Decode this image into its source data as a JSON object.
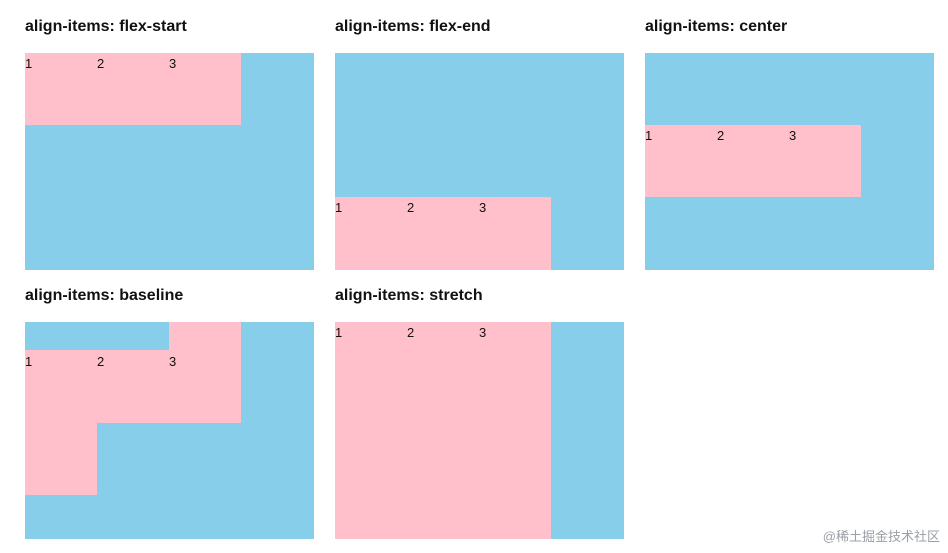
{
  "colors": {
    "container": "#87ceeb",
    "item": "#ffc0cb"
  },
  "panels": [
    {
      "title": "align-items: flex-start",
      "items": [
        "1",
        "2",
        "3"
      ]
    },
    {
      "title": "align-items: flex-end",
      "items": [
        "1",
        "2",
        "3"
      ]
    },
    {
      "title": "align-items: center",
      "items": [
        "1",
        "2",
        "3"
      ]
    },
    {
      "title": "align-items: baseline",
      "items": [
        "1",
        "2",
        "3"
      ]
    },
    {
      "title": "align-items: stretch",
      "items": [
        "1",
        "2",
        "3"
      ]
    }
  ],
  "watermark": "@稀土掘金技术社区"
}
